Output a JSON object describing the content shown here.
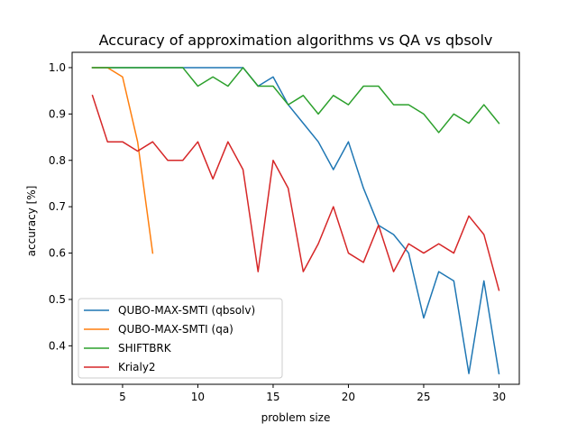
{
  "chart_data": {
    "type": "line",
    "title": "Accuracy of approximation algorithms vs QA vs qbsolv",
    "xlabel": "problem size",
    "ylabel": "accuracy [%]",
    "xlim": [
      1.65,
      31.35
    ],
    "ylim": [
      0.317,
      1.033
    ],
    "xticks": [
      5,
      10,
      15,
      20,
      25,
      30
    ],
    "yticks": [
      0.4,
      0.5,
      0.6,
      0.7,
      0.8,
      0.9,
      1.0
    ],
    "xtick_labels": [
      "5",
      "10",
      "15",
      "20",
      "25",
      "30"
    ],
    "ytick_labels": [
      "0.4",
      "0.5",
      "0.6",
      "0.7",
      "0.8",
      "0.9",
      "1.0"
    ],
    "grid": false,
    "legend_position": "lower-left",
    "series": [
      {
        "name": "QUBO-MAX-SMTI (qbsolv)",
        "color": "#1f77b4",
        "x": [
          3,
          4,
          5,
          6,
          7,
          8,
          9,
          10,
          11,
          12,
          13,
          14,
          15,
          16,
          17,
          18,
          19,
          20,
          21,
          22,
          23,
          24,
          25,
          26,
          27,
          28,
          29,
          30
        ],
        "y": [
          1.0,
          1.0,
          1.0,
          1.0,
          1.0,
          1.0,
          1.0,
          1.0,
          1.0,
          1.0,
          1.0,
          0.96,
          0.98,
          0.92,
          0.88,
          0.84,
          0.78,
          0.84,
          0.74,
          0.66,
          0.64,
          0.6,
          0.46,
          0.56,
          0.54,
          0.34,
          0.54,
          0.34
        ]
      },
      {
        "name": "QUBO-MAX-SMTI (qa)",
        "color": "#ff7f0e",
        "x": [
          3,
          4,
          5,
          6,
          7
        ],
        "y": [
          1.0,
          1.0,
          0.98,
          0.84,
          0.6
        ]
      },
      {
        "name": "SHIFTBRK",
        "color": "#2ca02c",
        "x": [
          3,
          4,
          5,
          6,
          7,
          8,
          9,
          10,
          11,
          12,
          13,
          14,
          15,
          16,
          17,
          18,
          19,
          20,
          21,
          22,
          23,
          24,
          25,
          26,
          27,
          28,
          29,
          30
        ],
        "y": [
          1.0,
          1.0,
          1.0,
          1.0,
          1.0,
          1.0,
          1.0,
          0.96,
          0.98,
          0.96,
          1.0,
          0.96,
          0.96,
          0.92,
          0.94,
          0.9,
          0.94,
          0.92,
          0.96,
          0.96,
          0.92,
          0.92,
          0.9,
          0.86,
          0.9,
          0.88,
          0.92,
          0.88
        ]
      },
      {
        "name": "Krialy2",
        "color": "#d62728",
        "x": [
          3,
          4,
          5,
          6,
          7,
          8,
          9,
          10,
          11,
          12,
          13,
          14,
          15,
          16,
          17,
          18,
          19,
          20,
          21,
          22,
          23,
          24,
          25,
          26,
          27,
          28,
          29,
          30
        ],
        "y": [
          0.94,
          0.84,
          0.84,
          0.82,
          0.84,
          0.8,
          0.8,
          0.84,
          0.76,
          0.84,
          0.78,
          0.56,
          0.8,
          0.74,
          0.56,
          0.62,
          0.7,
          0.6,
          0.58,
          0.66,
          0.56,
          0.62,
          0.6,
          0.62,
          0.6,
          0.68,
          0.64,
          0.52
        ]
      }
    ]
  }
}
